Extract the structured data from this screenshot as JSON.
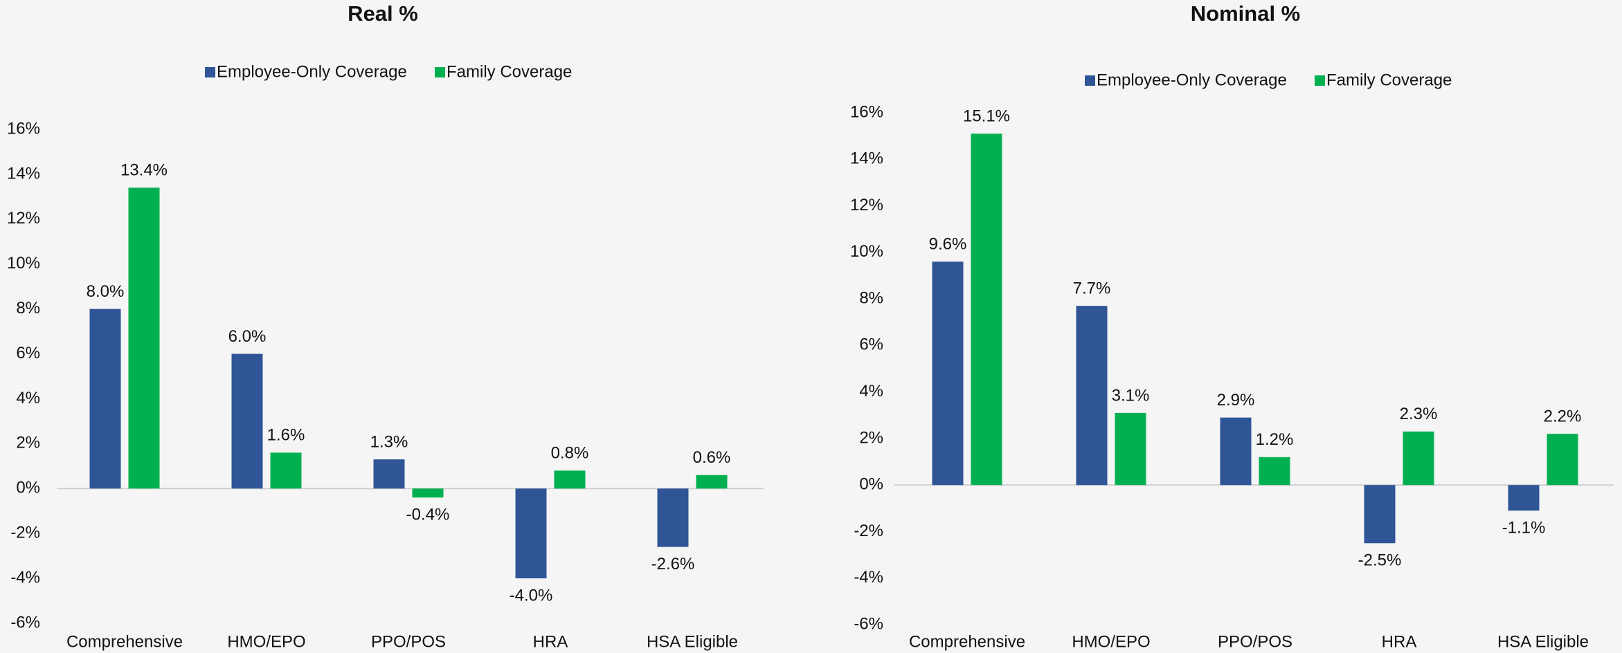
{
  "chart_data": [
    {
      "type": "bar",
      "title": "Real %",
      "categories": [
        "Comprehensive",
        "HMO/EPO",
        "PPO/POS",
        "HRA",
        "HSA Eligible"
      ],
      "series": [
        {
          "name": "Employee-Only Coverage",
          "color": "#2f5597",
          "values": [
            8.0,
            6.0,
            1.3,
            -4.0,
            -2.6
          ],
          "value_labels": [
            "8.0%",
            "6.0%",
            "1.3%",
            "-4.0%",
            "-2.6%"
          ]
        },
        {
          "name": "Family Coverage",
          "color": "#00b050",
          "values": [
            13.4,
            1.6,
            -0.4,
            0.8,
            0.6
          ],
          "value_labels": [
            "13.4%",
            "1.6%",
            "-0.4%",
            "0.8%",
            "0.6%"
          ]
        }
      ],
      "ylim": [
        -6,
        16
      ],
      "yticks": [
        {
          "value": -6,
          "label": "-6%"
        },
        {
          "value": -4,
          "label": "-4%"
        },
        {
          "value": -2,
          "label": "-2%"
        },
        {
          "value": 0,
          "label": "0%"
        },
        {
          "value": 2,
          "label": "2%"
        },
        {
          "value": 4,
          "label": "4%"
        },
        {
          "value": 6,
          "label": "6%"
        },
        {
          "value": 8,
          "label": "8%"
        },
        {
          "value": 10,
          "label": "10%"
        },
        {
          "value": 12,
          "label": "12%"
        },
        {
          "value": 14,
          "label": "14%"
        },
        {
          "value": 16,
          "label": "16%"
        }
      ],
      "legend": "top"
    },
    {
      "type": "bar",
      "title": "Nominal %",
      "categories": [
        "Comprehensive",
        "HMO/EPO",
        "PPO/POS",
        "HRA",
        "HSA Eligible"
      ],
      "series": [
        {
          "name": "Employee-Only Coverage",
          "color": "#2f5597",
          "values": [
            9.6,
            7.7,
            2.9,
            -2.5,
            -1.1
          ],
          "value_labels": [
            "9.6%",
            "7.7%",
            "2.9%",
            "-2.5%",
            "-1.1%"
          ]
        },
        {
          "name": "Family Coverage",
          "color": "#00b050",
          "values": [
            15.1,
            3.1,
            1.2,
            2.3,
            2.2
          ],
          "value_labels": [
            "15.1%",
            "3.1%",
            "1.2%",
            "2.3%",
            "2.2%"
          ]
        }
      ],
      "ylim": [
        -6,
        16
      ],
      "yticks": [
        {
          "value": -6,
          "label": "-6%"
        },
        {
          "value": -4,
          "label": "-4%"
        },
        {
          "value": -2,
          "label": "-2%"
        },
        {
          "value": 0,
          "label": "0%"
        },
        {
          "value": 2,
          "label": "2%"
        },
        {
          "value": 4,
          "label": "4%"
        },
        {
          "value": 6,
          "label": "6%"
        },
        {
          "value": 8,
          "label": "8%"
        },
        {
          "value": 10,
          "label": "10%"
        },
        {
          "value": 12,
          "label": "12%"
        },
        {
          "value": 14,
          "label": "14%"
        },
        {
          "value": 16,
          "label": "16%"
        }
      ],
      "legend": "top"
    }
  ]
}
